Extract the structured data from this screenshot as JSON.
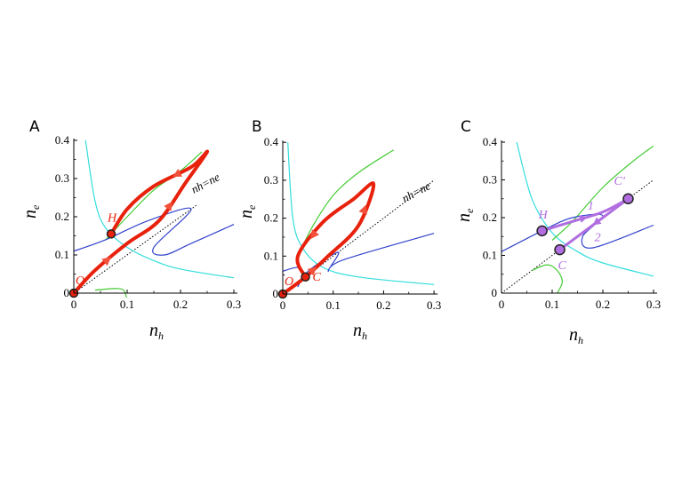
{
  "chart_data": [
    {
      "panel": "A",
      "type": "line",
      "xlabel": "n",
      "xlabel_sub": "h",
      "ylabel": "n",
      "ylabel_sub": "e",
      "xlim": [
        0,
        0.3
      ],
      "ylim": [
        0,
        0.4
      ],
      "xticks": [
        "0",
        "0.1",
        "0.2",
        "0.3"
      ],
      "yticks": [
        "0",
        "0.1",
        "0.2",
        "0.3",
        "0.4"
      ],
      "diagonal_label": "nh=ne",
      "nullclines": [
        {
          "name": "cyan",
          "color": "#33dddd",
          "points": [
            [
              0.022,
              0.4
            ],
            [
              0.04,
              0.24
            ],
            [
              0.06,
              0.17
            ],
            [
              0.1,
              0.12
            ],
            [
              0.15,
              0.085
            ],
            [
              0.2,
              0.063
            ],
            [
              0.3,
              0.04
            ]
          ]
        },
        {
          "name": "green-upper",
          "color": "#44cc33",
          "points": [
            [
              0.06,
              0.14
            ],
            [
              0.1,
              0.2
            ],
            [
              0.15,
              0.27
            ],
            [
              0.2,
              0.32
            ],
            [
              0.24,
              0.37
            ]
          ]
        },
        {
          "name": "green-lower",
          "color": "#44cc33",
          "points": [
            [
              0.04,
              0.008
            ],
            [
              0.08,
              0.012
            ],
            [
              0.095,
              0.005
            ],
            [
              0.1,
              -0.025
            ]
          ]
        },
        {
          "name": "blue",
          "color": "#3344cc",
          "points": [
            [
              0,
              0.11
            ],
            [
              0.06,
              0.14
            ],
            [
              0.14,
              0.19
            ],
            [
              0.22,
              0.22
            ],
            [
              0.15,
              0.12
            ],
            [
              0.17,
              0.1
            ],
            [
              0.22,
              0.13
            ],
            [
              0.3,
              0.18
            ]
          ]
        }
      ],
      "trajectory": {
        "color": "#e8210c",
        "points": [
          [
            0,
            0
          ],
          [
            0.04,
            0.06
          ],
          [
            0.1,
            0.13
          ],
          [
            0.16,
            0.19
          ],
          [
            0.21,
            0.29
          ],
          [
            0.25,
            0.37
          ],
          [
            0.22,
            0.33
          ],
          [
            0.15,
            0.28
          ],
          [
            0.1,
            0.22
          ],
          [
            0.07,
            0.155
          ]
        ]
      },
      "fixed_points": [
        {
          "label": "H",
          "x": 0.07,
          "y": 0.155,
          "color": "#e8210c"
        },
        {
          "label": "O",
          "x": 0.0,
          "y": 0.0,
          "color": "#e8210c"
        }
      ]
    },
    {
      "panel": "B",
      "type": "line",
      "xlabel": "n",
      "xlabel_sub": "h",
      "ylabel": "n",
      "ylabel_sub": "e",
      "xlim": [
        0,
        0.3
      ],
      "ylim": [
        0,
        0.4
      ],
      "xticks": [
        "0",
        "0.1",
        "0.2",
        "0.3"
      ],
      "yticks": [
        "0",
        "0.1",
        "0.2",
        "0.3",
        "0.4"
      ],
      "diagonal_label": "nh=ne",
      "nullclines": [
        {
          "name": "cyan",
          "color": "#33dddd",
          "points": [
            [
              0.01,
              0.4
            ],
            [
              0.02,
              0.2
            ],
            [
              0.04,
              0.12
            ],
            [
              0.08,
              0.07
            ],
            [
              0.15,
              0.045
            ],
            [
              0.3,
              0.025
            ]
          ]
        },
        {
          "name": "green-upper",
          "color": "#44cc33",
          "points": [
            [
              0.03,
              0.1
            ],
            [
              0.06,
              0.18
            ],
            [
              0.1,
              0.26
            ],
            [
              0.15,
              0.32
            ],
            [
              0.22,
              0.38
            ]
          ]
        },
        {
          "name": "blue",
          "color": "#3344cc",
          "points": [
            [
              0,
              0.06
            ],
            [
              0.03,
              0.07
            ],
            [
              0.04,
              0.05
            ],
            [
              0.03,
              0.02
            ],
            [
              0.05,
              0.06
            ],
            [
              0.11,
              0.11
            ],
            [
              0.09,
              0.06
            ],
            [
              0.12,
              0.09
            ],
            [
              0.3,
              0.16
            ]
          ]
        }
      ],
      "trajectory": {
        "color": "#e8210c",
        "points": [
          [
            0,
            0
          ],
          [
            0.045,
            0.045
          ],
          [
            0.09,
            0.1
          ],
          [
            0.15,
            0.18
          ],
          [
            0.18,
            0.29
          ],
          [
            0.14,
            0.25
          ],
          [
            0.08,
            0.19
          ],
          [
            0.03,
            0.1
          ],
          [
            0.045,
            0.045
          ]
        ]
      },
      "fixed_points": [
        {
          "label": "C",
          "x": 0.045,
          "y": 0.045,
          "color": "#e8210c"
        },
        {
          "label": "O",
          "x": 0.0,
          "y": 0.0,
          "color": "#e8210c"
        }
      ]
    },
    {
      "panel": "C",
      "type": "line",
      "xlabel": "n",
      "xlabel_sub": "h",
      "ylabel": "n",
      "ylabel_sub": "e",
      "xlim": [
        0,
        0.3
      ],
      "ylim": [
        0,
        0.4
      ],
      "xticks": [
        "0",
        "0.1",
        "0.2",
        "0.3"
      ],
      "yticks": [
        "0",
        "0.1",
        "0.2",
        "0.3",
        "0.4"
      ],
      "nullclines": [
        {
          "name": "cyan",
          "color": "#33dddd",
          "points": [
            [
              0.03,
              0.4
            ],
            [
              0.06,
              0.25
            ],
            [
              0.1,
              0.16
            ],
            [
              0.15,
              0.11
            ],
            [
              0.2,
              0.08
            ],
            [
              0.3,
              0.045
            ]
          ]
        },
        {
          "name": "green-upper",
          "color": "#44cc33",
          "points": [
            [
              0.1,
              0.14
            ],
            [
              0.14,
              0.19
            ],
            [
              0.2,
              0.28
            ],
            [
              0.26,
              0.35
            ],
            [
              0.3,
              0.39
            ]
          ]
        },
        {
          "name": "green-lower",
          "color": "#44cc33",
          "points": [
            [
              0.06,
              0.06
            ],
            [
              0.09,
              0.075
            ],
            [
              0.11,
              0.06
            ],
            [
              0.12,
              0.03
            ],
            [
              0.11,
              0.0
            ]
          ]
        },
        {
          "name": "blue",
          "color": "#3344cc",
          "points": [
            [
              0,
              0.11
            ],
            [
              0.08,
              0.165
            ],
            [
              0.14,
              0.2
            ],
            [
              0.2,
              0.205
            ],
            [
              0.16,
              0.15
            ],
            [
              0.18,
              0.12
            ],
            [
              0.3,
              0.18
            ]
          ]
        }
      ],
      "transitions": [
        {
          "label": "1",
          "color": "#b06ee0",
          "points": [
            [
              0.08,
              0.165
            ],
            [
              0.14,
              0.19
            ],
            [
              0.2,
              0.215
            ],
            [
              0.25,
              0.25
            ]
          ]
        },
        {
          "label": "2",
          "color": "#b06ee0",
          "points": [
            [
              0.25,
              0.25
            ],
            [
              0.2,
              0.2
            ],
            [
              0.16,
              0.16
            ],
            [
              0.115,
              0.115
            ]
          ]
        }
      ],
      "fixed_points": [
        {
          "label": "H",
          "x": 0.08,
          "y": 0.165,
          "color": "#b06ee0"
        },
        {
          "label": "C'",
          "x": 0.25,
          "y": 0.25,
          "color": "#b06ee0"
        },
        {
          "label": "C",
          "x": 0.115,
          "y": 0.115,
          "color": "#b06ee0"
        }
      ]
    }
  ]
}
